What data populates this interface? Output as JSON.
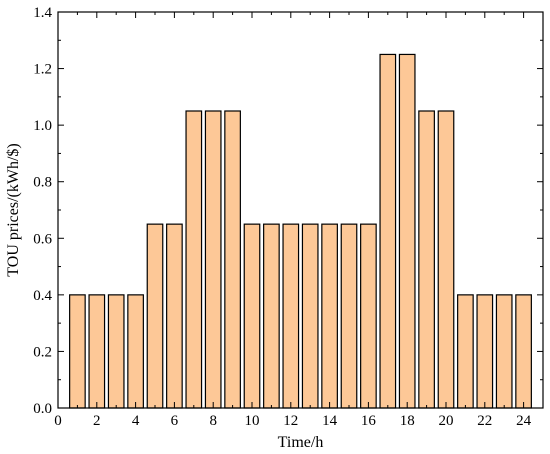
{
  "chart_data": {
    "type": "bar",
    "title": "",
    "xlabel": "Time/h",
    "ylabel": "TOU prices/(kWh/$)",
    "categories": [
      1,
      2,
      3,
      4,
      5,
      6,
      7,
      8,
      9,
      10,
      11,
      12,
      13,
      14,
      15,
      16,
      17,
      18,
      19,
      20,
      21,
      22,
      23,
      24
    ],
    "values": [
      0.4,
      0.4,
      0.4,
      0.4,
      0.65,
      0.65,
      1.05,
      1.05,
      1.05,
      0.65,
      0.65,
      0.65,
      0.65,
      0.65,
      0.65,
      0.65,
      1.25,
      1.25,
      1.05,
      1.05,
      0.4,
      0.4,
      0.4,
      0.4
    ],
    "xlim": [
      0,
      25
    ],
    "ylim": [
      0,
      1.4
    ],
    "x_ticks": [
      "0",
      "2",
      "4",
      "6",
      "8",
      "10",
      "12",
      "14",
      "16",
      "18",
      "20",
      "22",
      "24"
    ],
    "y_ticks": [
      "0.0",
      "0.2",
      "0.4",
      "0.6",
      "0.8",
      "1.0",
      "1.2",
      "1.4"
    ],
    "grid": false,
    "legend": "none",
    "bar_color": "#FDC897",
    "edge_color": "#000000"
  }
}
